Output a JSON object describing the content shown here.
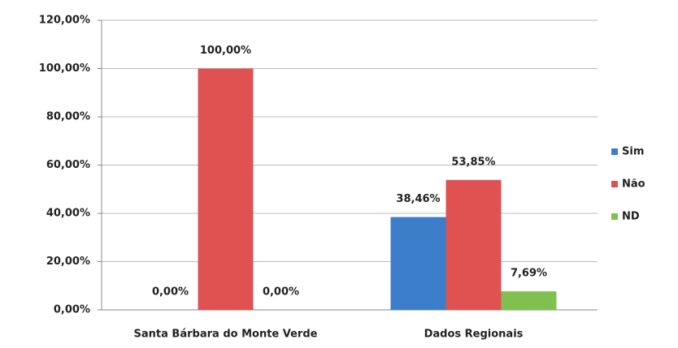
{
  "chart_data": {
    "type": "bar",
    "categories": [
      "Santa Bárbara do Monte Verde",
      "Dados Regionais"
    ],
    "series": [
      {
        "name": "Sim",
        "color": "#3b7dc8",
        "values": [
          0,
          38.46
        ],
        "value_labels": [
          "0,00%",
          "38,46%"
        ]
      },
      {
        "name": "Não",
        "color": "#e05252",
        "values": [
          100,
          53.85
        ],
        "value_labels": [
          "100,00%",
          "53,85%"
        ]
      },
      {
        "name": "ND",
        "color": "#80c050",
        "values": [
          0,
          7.69
        ],
        "value_labels": [
          "0,00%",
          "7,69%"
        ]
      }
    ],
    "ylim": [
      0,
      120
    ],
    "yticks": [
      {
        "value": 0,
        "label": "0,00%"
      },
      {
        "value": 20,
        "label": "20,00%"
      },
      {
        "value": 40,
        "label": "40,00%"
      },
      {
        "value": 60,
        "label": "60,00%"
      },
      {
        "value": 80,
        "label": "80,00%"
      },
      {
        "value": 100,
        "label": "100,00%"
      },
      {
        "value": 120,
        "label": "120,00%"
      }
    ],
    "grid": true,
    "legend": "right"
  }
}
